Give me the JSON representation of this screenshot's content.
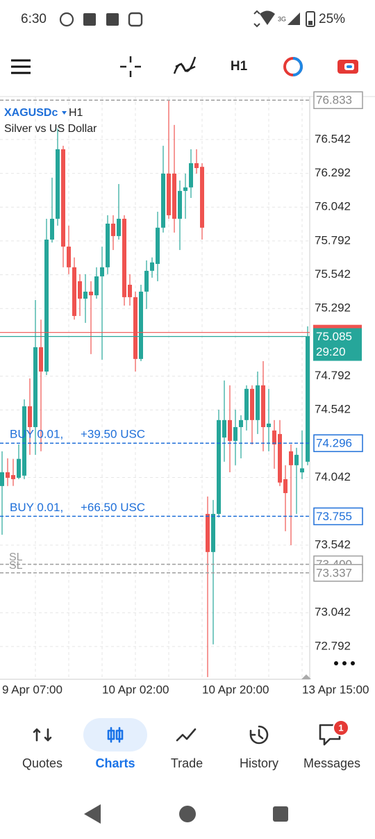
{
  "status_bar": {
    "time": "6:30",
    "network": "3G",
    "battery": "25%"
  },
  "toolbar": {
    "timeframe": "H1"
  },
  "chart_data": {
    "type": "candlestick",
    "title": "XAGUSDc",
    "timeframe": "H1",
    "subtitle": "Silver vs US Dollar",
    "categories": [
      "9 Apr 07:00",
      null,
      null,
      null,
      null,
      null,
      null,
      null,
      null,
      null,
      null,
      null,
      null,
      null,
      null,
      null,
      null,
      null,
      "10 Apr 02:00",
      null,
      null,
      null,
      null,
      null,
      null,
      null,
      null,
      null,
      null,
      null,
      null,
      null,
      null,
      null,
      null,
      null,
      "10 Apr 20:00",
      null,
      null,
      null,
      null,
      null,
      null,
      null,
      null,
      null,
      null,
      null,
      null,
      null,
      null,
      null,
      null,
      null,
      "13 Apr 15:00",
      null
    ],
    "open": [
      73.979,
      74.081,
      74.06,
      74.04,
      74.056,
      74.569,
      74.415,
      75.006,
      74.826,
      75.802,
      75.956,
      76.47,
      75.75,
      75.597,
      75.494,
      75.365,
      75.417,
      75.39,
      75.53,
      75.597,
      75.92,
      75.828,
      75.956,
      75.468,
      75.376,
      74.919,
      75.417,
      75.571,
      75.622,
      75.89,
      76.29,
      76.29,
      75.956,
      76.162,
      76.188,
      76.367,
      76.34,
      73.773,
      73.491,
      73.773,
      74.338,
      74.467,
      74.313,
      74.415,
      74.467,
      74.698,
      74.467,
      74.724,
      74.415,
      74.39,
      74.364,
      74.03,
      74.236,
      74.133,
      74.08,
      74.159
    ],
    "high": [
      74.236,
      74.184,
      74.18,
      74.287,
      74.62,
      74.775,
      75.355,
      75.21,
      75.956,
      76.26,
      76.624,
      76.496,
      75.905,
      75.67,
      75.546,
      75.546,
      75.494,
      75.597,
      75.75,
      75.982,
      75.982,
      76.213,
      75.982,
      75.546,
      75.417,
      75.468,
      75.648,
      75.67,
      76.008,
      76.496,
      76.83,
      76.65,
      76.239,
      76.29,
      76.47,
      76.47,
      76.367,
      73.902,
      73.876,
      74.544,
      74.76,
      74.724,
      74.544,
      74.503,
      74.724,
      74.724,
      74.826,
      74.903,
      74.698,
      74.467,
      74.467,
      74.133,
      74.287,
      74.262,
      74.39,
      75.16
    ],
    "low": [
      73.619,
      73.979,
      73.98,
      74.03,
      74.03,
      74.21,
      74.21,
      74.236,
      74.8,
      75.78,
      75.905,
      75.597,
      75.546,
      75.21,
      75.237,
      75.186,
      74.955,
      75.365,
      74.914,
      75.546,
      75.725,
      75.802,
      75.314,
      75.314,
      74.826,
      74.903,
      75.289,
      75.52,
      75.494,
      75.854,
      75.956,
      75.854,
      75.725,
      75.956,
      76.11,
      76.29,
      75.802,
      72.566,
      72.808,
      73.747,
      74.159,
      74.081,
      74.133,
      74.184,
      74.39,
      74.287,
      74.364,
      74.236,
      74.236,
      74.107,
      73.979,
      73.645,
      73.542,
      73.773,
      74.03,
      74.133
    ],
    "close": [
      74.081,
      74.04,
      74.03,
      74.18,
      74.569,
      74.415,
      75.006,
      74.826,
      75.802,
      75.956,
      76.47,
      75.75,
      75.597,
      75.237,
      75.365,
      75.417,
      75.39,
      75.53,
      75.597,
      75.92,
      75.828,
      75.956,
      75.376,
      75.376,
      74.919,
      75.417,
      75.571,
      75.633,
      75.89,
      76.29,
      75.982,
      75.956,
      76.162,
      76.188,
      76.367,
      76.331,
      75.89,
      73.491,
      73.773,
      74.467,
      74.467,
      74.313,
      74.415,
      74.467,
      74.698,
      74.467,
      74.724,
      74.415,
      74.441,
      74.287,
      74.005,
      73.927,
      74.133,
      74.21,
      74.11,
      75.085
    ],
    "up_color": "#26a69a",
    "down_color": "#ef5350",
    "ylim": [
      72.55,
      76.86
    ],
    "yticks": [
      76.542,
      76.292,
      76.042,
      75.792,
      75.542,
      75.292,
      74.792,
      74.542,
      74.042,
      73.542,
      73.042,
      72.792
    ],
    "grid": true,
    "ask_price": {
      "value": 75.115,
      "color": "#ef5350"
    },
    "current_price": {
      "value": 75.085,
      "timer": "29:20",
      "color": "#26a69a"
    },
    "levels": [
      {
        "value": 76.833,
        "color": "#9e9e9e"
      },
      {
        "value": 74.296,
        "color": "#1e6fd9",
        "order": "BUY 0.01,",
        "profit": "+39.50 USC"
      },
      {
        "value": 73.755,
        "color": "#1e6fd9",
        "order": "BUY 0.01,",
        "profit": "+66.50 USC"
      },
      {
        "value": 73.4,
        "label": "73.400",
        "color": "#9e9e9e",
        "tag": "SL"
      },
      {
        "value": 73.337,
        "color": "#9e9e9e",
        "tag": "SL"
      }
    ]
  },
  "tabs": [
    {
      "label": "Quotes"
    },
    {
      "label": "Charts",
      "active": true
    },
    {
      "label": "Trade"
    },
    {
      "label": "History"
    },
    {
      "label": "Messages",
      "badge": 1
    }
  ]
}
